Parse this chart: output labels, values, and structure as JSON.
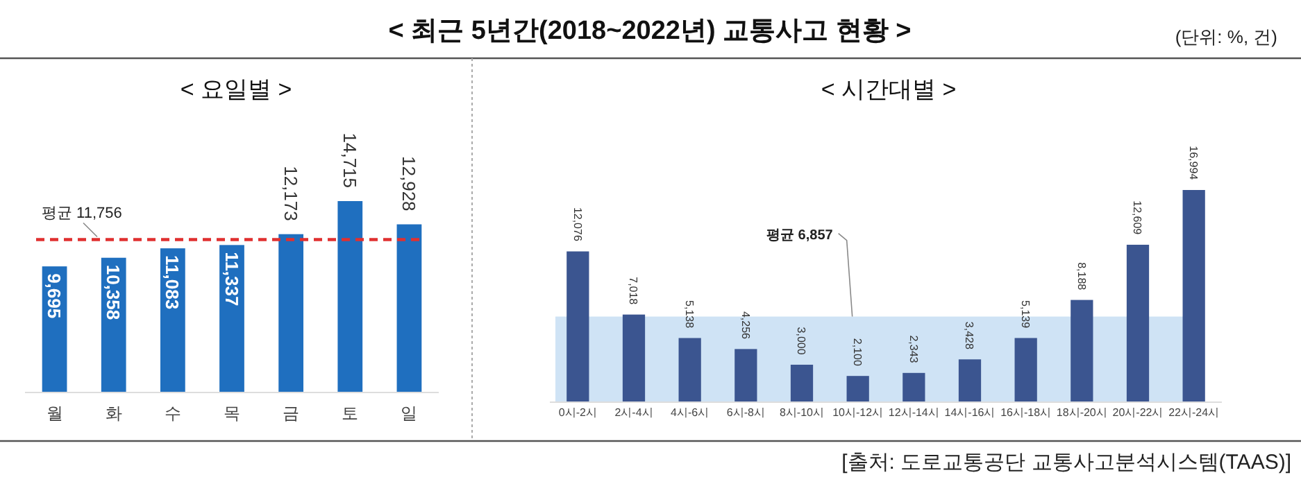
{
  "chart_data": [
    {
      "type": "other",
      "title": "< 최근 5년간(2018~2022년) 교통사고 현황 >",
      "annotations": [
        "(단위: %, 건)"
      ]
    },
    {
      "type": "bar",
      "title": "< 요일별 >",
      "categories": [
        "월",
        "화",
        "수",
        "목",
        "금",
        "토",
        "일"
      ],
      "values": [
        9695,
        10358,
        11083,
        11337,
        12173,
        14715,
        12928
      ],
      "value_labels": [
        "9,695",
        "10,358",
        "11,083",
        "11,337",
        "12,173",
        "14,715",
        "12,928"
      ],
      "color": "#1f6fbf",
      "ref_lines": [
        {
          "axis": "y",
          "value": 11756,
          "label": "평균 11,756",
          "color": "#e03030",
          "line_style": "dashed"
        }
      ]
    },
    {
      "type": "bar",
      "title": "< 시간대별 >",
      "annotations": [
        "[출처: 도로교통공단 교통사고분석시스템(TAAS)]"
      ],
      "categories": [
        "0시-2시",
        "2시-4시",
        "4시-6시",
        "6시-8시",
        "8시-10시",
        "10시-12시",
        "12시-14시",
        "14시-16시",
        "16시-18시",
        "18시-20시",
        "20시-22시",
        "22시-24시"
      ],
      "values": [
        12076,
        7018,
        5138,
        4256,
        3000,
        2100,
        2343,
        3428,
        5139,
        8188,
        12609,
        16994
      ],
      "value_labels": [
        "12,076",
        "7,018",
        "5,138",
        "4,256",
        "3,000",
        "2,100",
        "2,343",
        "3,428",
        "5,139",
        "8,188",
        "12,609",
        "16,994"
      ],
      "color": "#3b5590",
      "bands": [
        {
          "axis": "y",
          "from": 0,
          "to": 6857,
          "label": "평균 6,857",
          "color": "#cfe3f5"
        }
      ]
    }
  ]
}
